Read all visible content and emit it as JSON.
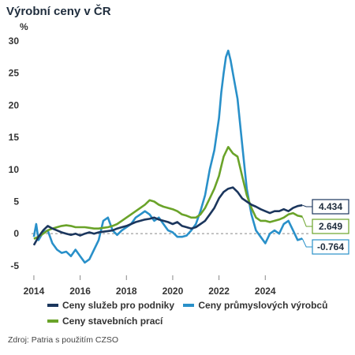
{
  "colors": {
    "services": "#1b365d",
    "industrial": "#2990c9",
    "construction": "#6aa329",
    "zero_line": "#888888"
  },
  "chart_data": {
    "type": "line",
    "title": "Výrobní ceny v ČR",
    "ylabel": "%",
    "xlim": [
      2013.9,
      2025.9
    ],
    "ylim": [
      -6,
      30
    ],
    "yticks": [
      -5,
      0,
      5,
      10,
      15,
      20,
      25,
      30
    ],
    "xticks": [
      2014,
      2016,
      2018,
      2020,
      2022,
      2024
    ],
    "grid": false,
    "legend_position": "bottom",
    "series": [
      {
        "name": "Ceny služeb pro podniky",
        "color_key": "services",
        "last_value_label": "4.434",
        "x": [
          2014.0,
          2014.2,
          2014.4,
          2014.6,
          2014.8,
          2015.0,
          2015.2,
          2015.4,
          2015.6,
          2015.8,
          2016.0,
          2016.2,
          2016.4,
          2016.6,
          2016.8,
          2017.0,
          2017.2,
          2017.4,
          2017.6,
          2017.8,
          2018.0,
          2018.2,
          2018.4,
          2018.6,
          2018.8,
          2019.0,
          2019.2,
          2019.4,
          2019.6,
          2019.8,
          2020.0,
          2020.2,
          2020.4,
          2020.6,
          2020.8,
          2021.0,
          2021.2,
          2021.4,
          2021.6,
          2021.8,
          2022.0,
          2022.2,
          2022.4,
          2022.6,
          2022.8,
          2023.0,
          2023.2,
          2023.4,
          2023.6,
          2023.8,
          2024.0,
          2024.2,
          2024.4,
          2024.6,
          2024.8,
          2025.0,
          2025.2,
          2025.4,
          2025.6
        ],
        "y": [
          -1.8,
          -0.5,
          0.5,
          1.2,
          0.8,
          0.5,
          0.2,
          0.0,
          -0.2,
          0.0,
          -0.3,
          0.0,
          0.2,
          0.0,
          0.2,
          0.3,
          0.4,
          0.5,
          0.8,
          1.0,
          1.2,
          1.5,
          1.8,
          2.0,
          2.2,
          2.3,
          2.5,
          2.2,
          2.0,
          1.8,
          1.5,
          1.8,
          1.2,
          1.0,
          0.8,
          1.0,
          1.5,
          2.0,
          3.0,
          4.0,
          5.5,
          6.5,
          7.0,
          7.2,
          6.5,
          5.5,
          5.0,
          4.5,
          4.2,
          3.8,
          3.5,
          3.2,
          3.5,
          3.5,
          3.8,
          3.5,
          4.0,
          4.3,
          4.434
        ]
      },
      {
        "name": "Ceny průmyslových výrobců",
        "color_key": "industrial",
        "last_value_label": "-0.764",
        "x": [
          2014.0,
          2014.1,
          2014.2,
          2014.4,
          2014.6,
          2014.8,
          2015.0,
          2015.2,
          2015.4,
          2015.6,
          2015.8,
          2016.0,
          2016.2,
          2016.4,
          2016.6,
          2016.8,
          2017.0,
          2017.2,
          2017.4,
          2017.6,
          2017.8,
          2018.0,
          2018.2,
          2018.4,
          2018.6,
          2018.8,
          2019.0,
          2019.2,
          2019.4,
          2019.6,
          2019.8,
          2020.0,
          2020.2,
          2020.4,
          2020.6,
          2020.8,
          2021.0,
          2021.2,
          2021.4,
          2021.6,
          2021.8,
          2022.0,
          2022.1,
          2022.2,
          2022.3,
          2022.4,
          2022.5,
          2022.6,
          2022.8,
          2023.0,
          2023.2,
          2023.4,
          2023.6,
          2023.8,
          2024.0,
          2024.2,
          2024.4,
          2024.6,
          2024.8,
          2025.0,
          2025.2,
          2025.4,
          2025.6
        ],
        "y": [
          -0.5,
          1.5,
          -1.0,
          0.2,
          0.5,
          -1.5,
          -2.5,
          -3.0,
          -2.8,
          -3.5,
          -2.5,
          -3.5,
          -4.5,
          -4.0,
          -2.5,
          -1.0,
          2.0,
          2.5,
          0.5,
          -0.2,
          0.5,
          1.0,
          1.5,
          2.5,
          3.0,
          3.5,
          3.0,
          2.0,
          2.5,
          1.5,
          0.5,
          0.2,
          -0.5,
          -0.5,
          -0.3,
          0.5,
          1.5,
          3.5,
          6.0,
          10.0,
          13.0,
          18.0,
          22.0,
          25.0,
          27.5,
          28.5,
          27.0,
          25.0,
          21.0,
          14.0,
          7.0,
          3.0,
          0.5,
          -0.5,
          -1.5,
          0.0,
          0.5,
          0.0,
          1.5,
          2.0,
          0.5,
          -1.0,
          -0.764
        ]
      },
      {
        "name": "Ceny stavebních prací",
        "color_key": "construction",
        "last_value_label": "2.649",
        "x": [
          2014.0,
          2014.2,
          2014.4,
          2014.6,
          2014.8,
          2015.0,
          2015.2,
          2015.4,
          2015.6,
          2015.8,
          2016.0,
          2016.2,
          2016.4,
          2016.6,
          2016.8,
          2017.0,
          2017.2,
          2017.4,
          2017.6,
          2017.8,
          2018.0,
          2018.2,
          2018.4,
          2018.6,
          2018.8,
          2019.0,
          2019.2,
          2019.4,
          2019.6,
          2019.8,
          2020.0,
          2020.2,
          2020.4,
          2020.6,
          2020.8,
          2021.0,
          2021.2,
          2021.4,
          2021.6,
          2021.8,
          2022.0,
          2022.1,
          2022.2,
          2022.4,
          2022.6,
          2022.8,
          2023.0,
          2023.2,
          2023.4,
          2023.6,
          2023.8,
          2024.0,
          2024.2,
          2024.4,
          2024.6,
          2024.8,
          2025.0,
          2025.2,
          2025.4,
          2025.6
        ],
        "y": [
          -0.8,
          -0.5,
          0.0,
          0.5,
          0.8,
          1.0,
          1.2,
          1.3,
          1.2,
          1.0,
          1.0,
          1.0,
          0.9,
          0.8,
          0.8,
          0.9,
          1.0,
          1.2,
          1.5,
          2.0,
          2.5,
          3.0,
          3.5,
          4.0,
          4.5,
          5.2,
          5.0,
          4.5,
          4.2,
          4.0,
          3.8,
          3.5,
          3.0,
          2.8,
          2.5,
          2.5,
          3.0,
          4.0,
          5.5,
          7.0,
          9.0,
          10.5,
          12.0,
          13.5,
          12.5,
          12.0,
          9.0,
          6.0,
          4.0,
          2.5,
          2.0,
          2.0,
          1.8,
          2.0,
          2.2,
          2.5,
          3.0,
          3.2,
          2.8,
          2.649
        ]
      }
    ]
  }
}
